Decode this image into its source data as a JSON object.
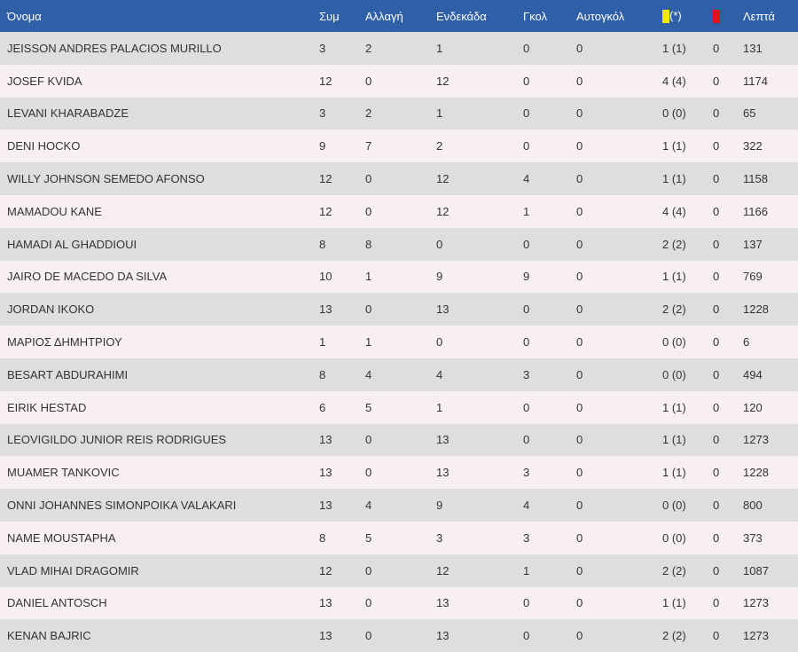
{
  "colors": {
    "header_bg": "#2f5fa7",
    "row_odd": "#dedede",
    "row_even": "#f7eff0",
    "yellow_card": "#f2ea00",
    "red_card": "#e0121b"
  },
  "header": {
    "name": "Όνομα",
    "apps": "Συμ",
    "subs": "Αλλαγή",
    "starts": "Ενδεκάδα",
    "goals": "Γκολ",
    "own_goals": "Αυτογκόλ",
    "yellow_suffix": "(*)",
    "yellow_icon": "yellow-card-icon",
    "red_icon": "red-card-icon",
    "minutes": "Λεπτά"
  },
  "players": [
    {
      "name": "JEISSON ANDRES PALACIOS MURILLO",
      "apps": "3",
      "subs": "2",
      "starts": "1",
      "goals": "0",
      "own_goals": "0",
      "yellow": "1 (1)",
      "red": "0",
      "minutes": "131"
    },
    {
      "name": "JOSEF KVIDA",
      "apps": "12",
      "subs": "0",
      "starts": "12",
      "goals": "0",
      "own_goals": "0",
      "yellow": "4 (4)",
      "red": "0",
      "minutes": "1174"
    },
    {
      "name": "LEVANI KHARABADZE",
      "apps": "3",
      "subs": "2",
      "starts": "1",
      "goals": "0",
      "own_goals": "0",
      "yellow": "0 (0)",
      "red": "0",
      "minutes": "65"
    },
    {
      "name": "DENI HOCKO",
      "apps": "9",
      "subs": "7",
      "starts": "2",
      "goals": "0",
      "own_goals": "0",
      "yellow": "1 (1)",
      "red": "0",
      "minutes": "322"
    },
    {
      "name": "WILLY JOHNSON SEMEDO AFONSO",
      "apps": "12",
      "subs": "0",
      "starts": "12",
      "goals": "4",
      "own_goals": "0",
      "yellow": "1 (1)",
      "red": "0",
      "minutes": "1158"
    },
    {
      "name": "MAMADOU KANE",
      "apps": "12",
      "subs": "0",
      "starts": "12",
      "goals": "1",
      "own_goals": "0",
      "yellow": "4 (4)",
      "red": "0",
      "minutes": "1166"
    },
    {
      "name": "HAMADI AL GHADDIOUI",
      "apps": "8",
      "subs": "8",
      "starts": "0",
      "goals": "0",
      "own_goals": "0",
      "yellow": "2 (2)",
      "red": "0",
      "minutes": "137"
    },
    {
      "name": "JAIRO DE MACEDO DA SILVA",
      "apps": "10",
      "subs": "1",
      "starts": "9",
      "goals": "9",
      "own_goals": "0",
      "yellow": "1 (1)",
      "red": "0",
      "minutes": "769"
    },
    {
      "name": "JORDAN IKOKO",
      "apps": "13",
      "subs": "0",
      "starts": "13",
      "goals": "0",
      "own_goals": "0",
      "yellow": "2 (2)",
      "red": "0",
      "minutes": "1228"
    },
    {
      "name": "ΜΑΡΙΟΣ ΔΗΜΗΤΡΙΟΥ",
      "apps": "1",
      "subs": "1",
      "starts": "0",
      "goals": "0",
      "own_goals": "0",
      "yellow": "0 (0)",
      "red": "0",
      "minutes": "6"
    },
    {
      "name": "BESART ABDURAHIMI",
      "apps": "8",
      "subs": "4",
      "starts": "4",
      "goals": "3",
      "own_goals": "0",
      "yellow": "0 (0)",
      "red": "0",
      "minutes": "494"
    },
    {
      "name": "EIRIK HESTAD",
      "apps": "6",
      "subs": "5",
      "starts": "1",
      "goals": "0",
      "own_goals": "0",
      "yellow": "1 (1)",
      "red": "0",
      "minutes": "120"
    },
    {
      "name": "LEOVIGILDO JUNIOR REIS RODRIGUES",
      "apps": "13",
      "subs": "0",
      "starts": "13",
      "goals": "0",
      "own_goals": "0",
      "yellow": "1 (1)",
      "red": "0",
      "minutes": "1273"
    },
    {
      "name": "MUAMER TANKOVIC",
      "apps": "13",
      "subs": "0",
      "starts": "13",
      "goals": "3",
      "own_goals": "0",
      "yellow": "1 (1)",
      "red": "0",
      "minutes": "1228"
    },
    {
      "name": "ONNI JOHANNES SIMONPOIKA VALAKARI",
      "apps": "13",
      "subs": "4",
      "starts": "9",
      "goals": "4",
      "own_goals": "0",
      "yellow": "0 (0)",
      "red": "0",
      "minutes": "800"
    },
    {
      "name": "NAME MOUSTAPHA",
      "apps": "8",
      "subs": "5",
      "starts": "3",
      "goals": "3",
      "own_goals": "0",
      "yellow": "0 (0)",
      "red": "0",
      "minutes": "373"
    },
    {
      "name": "VLAD MIHAI DRAGOMIR",
      "apps": "12",
      "subs": "0",
      "starts": "12",
      "goals": "1",
      "own_goals": "0",
      "yellow": "2 (2)",
      "red": "0",
      "minutes": "1087"
    },
    {
      "name": "DANIEL ANTOSCH",
      "apps": "13",
      "subs": "0",
      "starts": "13",
      "goals": "0",
      "own_goals": "0",
      "yellow": "1 (1)",
      "red": "0",
      "minutes": "1273"
    },
    {
      "name": "KENAN BAJRIC",
      "apps": "13",
      "subs": "0",
      "starts": "13",
      "goals": "0",
      "own_goals": "0",
      "yellow": "2 (2)",
      "red": "0",
      "minutes": "1273"
    }
  ]
}
